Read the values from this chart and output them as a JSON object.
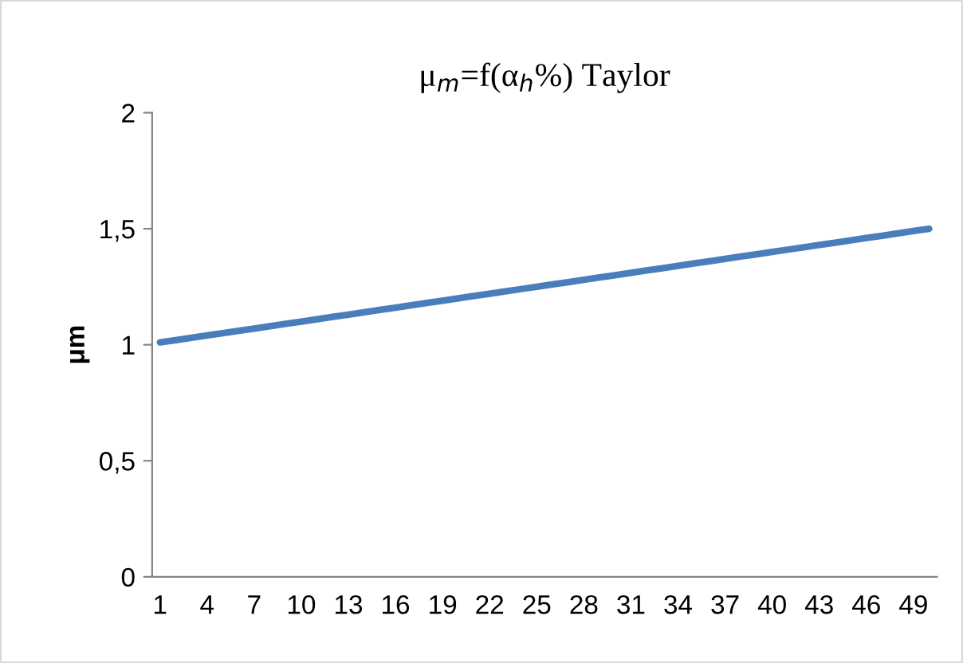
{
  "chart_data": {
    "type": "line",
    "title": "μ$_{m}$=f(α$_{h}$%) Taylor",
    "ylabel": "μm",
    "categories": [
      "1",
      null,
      null,
      "4",
      null,
      null,
      "7",
      null,
      null,
      "10",
      null,
      null,
      "13",
      null,
      null,
      "16",
      null,
      null,
      "19",
      null,
      null,
      "22",
      null,
      null,
      "25",
      null,
      null,
      "28",
      null,
      null,
      "31",
      null,
      null,
      "34",
      null,
      null,
      "37",
      null,
      null,
      "40",
      null,
      null,
      "43",
      null,
      null,
      "46",
      null,
      null,
      "49",
      null
    ],
    "series": [
      {
        "color": "#4a7ebb",
        "values": [
          1.01,
          1.02,
          1.03,
          1.04,
          1.05,
          1.06,
          1.07,
          1.08,
          1.09,
          1.1,
          1.11,
          1.12,
          1.13,
          1.14,
          1.15,
          1.16,
          1.17,
          1.18,
          1.19,
          1.2,
          1.21,
          1.22,
          1.23,
          1.24,
          1.25,
          1.26,
          1.27,
          1.28,
          1.29,
          1.3,
          1.31,
          1.32,
          1.33,
          1.34,
          1.35,
          1.36,
          1.37,
          1.38,
          1.39,
          1.4,
          1.41,
          1.42,
          1.43,
          1.44,
          1.45,
          1.46,
          1.47,
          1.48,
          1.49,
          1.5
        ]
      }
    ],
    "ylim": [
      0,
      2
    ],
    "yticks": [
      0,
      {
        "value": 0.5,
        "label": "0,5"
      },
      1,
      {
        "value": 1.5,
        "label": "1,5"
      },
      2
    ],
    "grid": false,
    "legend": false,
    "marker": "none",
    "line_style": "solid"
  }
}
